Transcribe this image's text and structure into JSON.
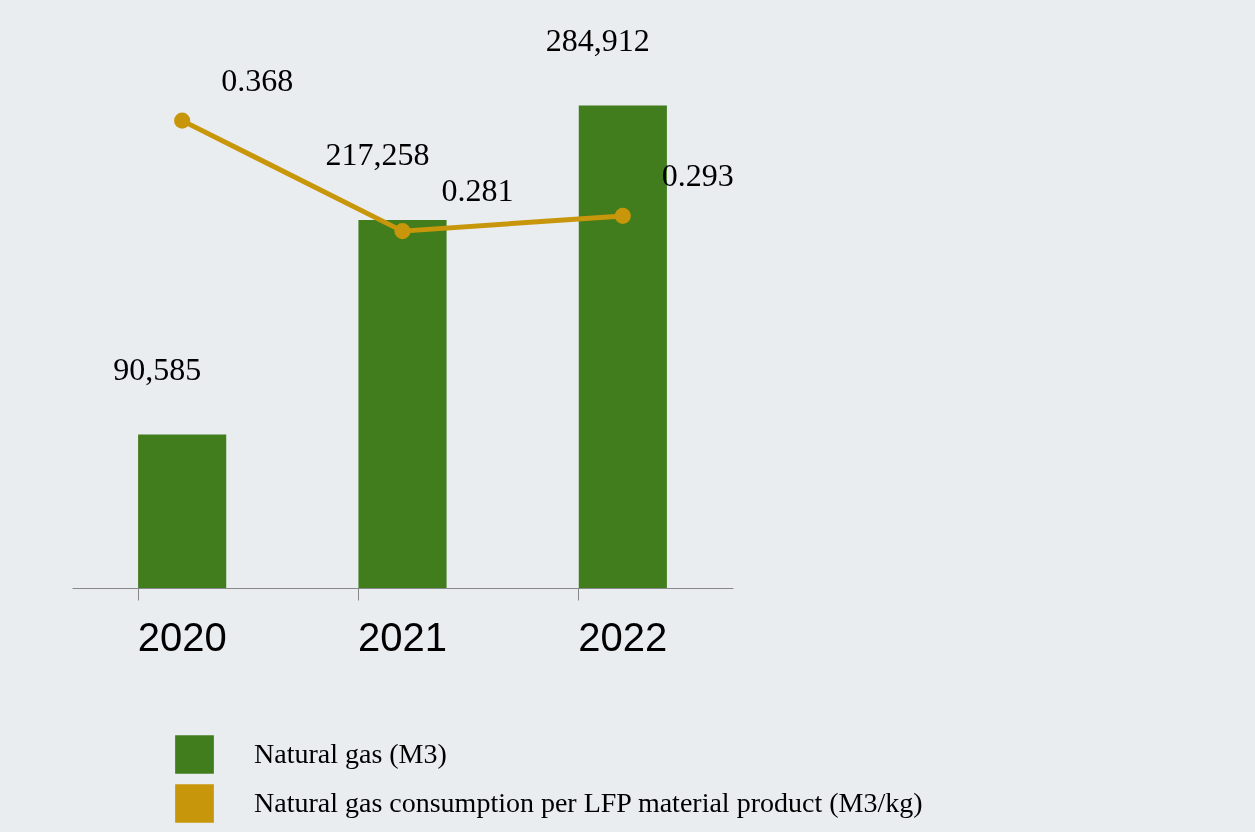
{
  "chart_data": {
    "type": "bar",
    "categories": [
      "2020",
      "2021",
      "2022"
    ],
    "series": [
      {
        "name": "Natural gas (M3)",
        "color": "#417d1c",
        "values": [
          90585,
          217258,
          284912
        ],
        "value_labels": [
          "90,585",
          "217,258",
          "284,912"
        ]
      },
      {
        "name": "Natural gas consumption per LFP material product (M3/kg)",
        "type": "line",
        "axis": "y2",
        "color": "#c8960a",
        "values": [
          0.368,
          0.281,
          0.293
        ],
        "value_labels": [
          "0.368",
          "0.281",
          "0.293"
        ]
      }
    ],
    "legend": "bottom",
    "marker": "circle",
    "tick_labels": "x",
    "grid": false
  }
}
